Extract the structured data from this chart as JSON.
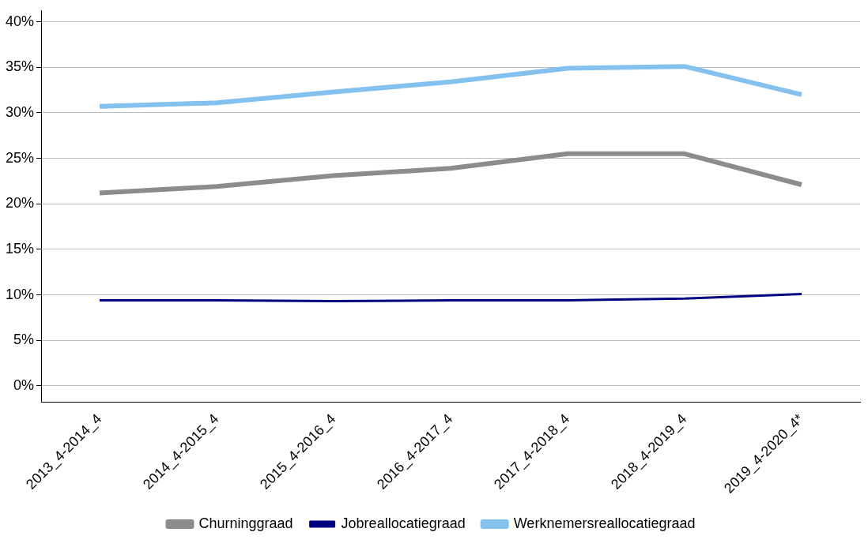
{
  "chart_data": {
    "type": "line",
    "categories": [
      "2013_4-2014_4",
      "2014_4-2015_4",
      "2015_4-2016_4",
      "2016_4-2017_4",
      "2017_4-2018_4",
      "2018_4-2019_4",
      "2019_4-2020_4*"
    ],
    "series": [
      {
        "name": "Churninggraad",
        "color": "#8c8c8c",
        "values": [
          21.2,
          21.9,
          23.1,
          23.9,
          25.5,
          25.5,
          22.1
        ]
      },
      {
        "name": "Jobreallocatiegraad",
        "color": "#000080",
        "values": [
          9.4,
          9.4,
          9.3,
          9.4,
          9.4,
          9.6,
          10.1
        ]
      },
      {
        "name": "Werknemersreallocatiegraad",
        "color": "#85c1ef",
        "values": [
          30.7,
          31.1,
          32.3,
          33.4,
          34.9,
          35.1,
          32.0
        ]
      }
    ],
    "ylim": [
      -1.8,
      41.2
    ],
    "yticks": [
      {
        "value": 0,
        "label": "0%"
      },
      {
        "value": 5,
        "label": "5%"
      },
      {
        "value": 10,
        "label": "10%"
      },
      {
        "value": 15,
        "label": "15%"
      },
      {
        "value": 20,
        "label": "20%"
      },
      {
        "value": 25,
        "label": "25%"
      },
      {
        "value": 30,
        "label": "30%"
      },
      {
        "value": 35,
        "label": "35%"
      },
      {
        "value": 40,
        "label": "40%"
      }
    ],
    "grid": "y",
    "legend": "bottom",
    "marker": "none",
    "line_style": "solid"
  }
}
